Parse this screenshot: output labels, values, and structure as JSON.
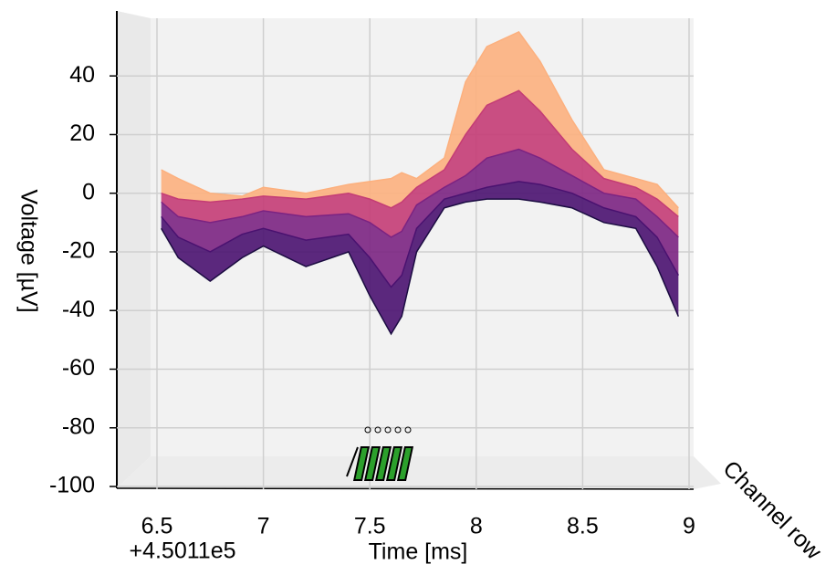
{
  "chart_data": {
    "type": "surface",
    "xlabel": "Time [ms]",
    "ylabel": "Voltage [µV]",
    "zlabel": "Channel row",
    "x_offset_label": "+4.5011e5",
    "x": [
      6.52,
      6.6,
      6.75,
      6.9,
      7.0,
      7.2,
      7.4,
      7.5,
      7.6,
      7.65,
      7.72,
      7.85,
      7.95,
      8.05,
      8.2,
      8.3,
      8.45,
      8.6,
      8.75,
      8.85,
      8.95
    ],
    "series": [
      {
        "color": "#1b0c41",
        "values": [
          -12,
          -22,
          -30,
          -22,
          -18,
          -25,
          -20,
          -35,
          -48,
          -42,
          -20,
          -5,
          -3,
          -2,
          -2,
          -3,
          -5,
          -10,
          -12,
          -25,
          -42
        ]
      },
      {
        "color": "#4a1270",
        "values": [
          -8,
          -15,
          -20,
          -14,
          -12,
          -16,
          -14,
          -22,
          -32,
          -28,
          -12,
          -2,
          0,
          2,
          4,
          3,
          0,
          -5,
          -8,
          -15,
          -28
        ]
      },
      {
        "color": "#7b2382",
        "values": [
          -3,
          -8,
          -10,
          -8,
          -6,
          -8,
          -7,
          -10,
          -15,
          -13,
          -4,
          2,
          6,
          12,
          15,
          12,
          6,
          0,
          -2,
          -8,
          -15
        ]
      },
      {
        "color": "#c43c75",
        "values": [
          0,
          -2,
          -3,
          -2,
          -1,
          -2,
          0,
          -2,
          -5,
          -3,
          2,
          8,
          20,
          30,
          35,
          28,
          15,
          5,
          2,
          -2,
          -8
        ]
      },
      {
        "color": "#fcb07e",
        "values": [
          8,
          5,
          0,
          -1,
          2,
          0,
          3,
          4,
          5,
          7,
          5,
          12,
          38,
          50,
          55,
          45,
          25,
          8,
          5,
          3,
          -5
        ]
      }
    ],
    "xlim": [
      6.5,
      9.0
    ],
    "xticks": [
      6.5,
      7.0,
      7.5,
      8.0,
      8.5,
      9.0
    ],
    "ylim": [
      -100,
      55
    ],
    "yticks": [
      -100,
      -80,
      -60,
      -40,
      -20,
      0,
      20,
      40
    ],
    "grid": true
  }
}
